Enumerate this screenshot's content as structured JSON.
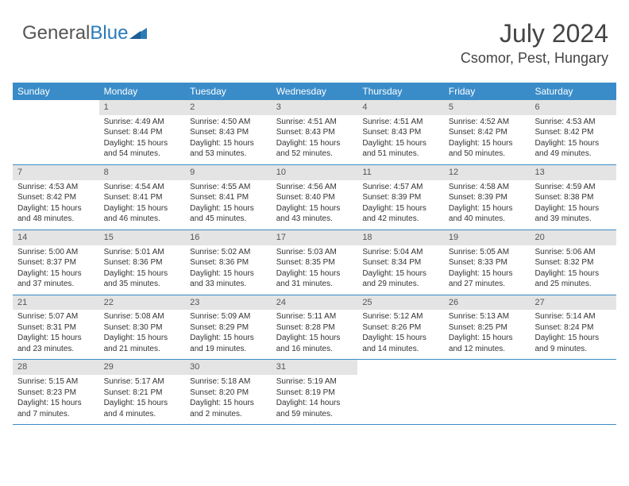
{
  "logo": {
    "text_gray": "General",
    "text_blue": "Blue"
  },
  "title": "July 2024",
  "location": "Csomor, Pest, Hungary",
  "colors": {
    "header_bg": "#3a8cc9",
    "header_text": "#ffffff",
    "daynum_bg": "#e4e4e4",
    "text": "#333333",
    "rule": "#3a8cc9"
  },
  "day_headers": [
    "Sunday",
    "Monday",
    "Tuesday",
    "Wednesday",
    "Thursday",
    "Friday",
    "Saturday"
  ],
  "weeks": [
    [
      null,
      {
        "n": "1",
        "sr": "4:49 AM",
        "ss": "8:44 PM",
        "dl": "15 hours and 54 minutes."
      },
      {
        "n": "2",
        "sr": "4:50 AM",
        "ss": "8:43 PM",
        "dl": "15 hours and 53 minutes."
      },
      {
        "n": "3",
        "sr": "4:51 AM",
        "ss": "8:43 PM",
        "dl": "15 hours and 52 minutes."
      },
      {
        "n": "4",
        "sr": "4:51 AM",
        "ss": "8:43 PM",
        "dl": "15 hours and 51 minutes."
      },
      {
        "n": "5",
        "sr": "4:52 AM",
        "ss": "8:42 PM",
        "dl": "15 hours and 50 minutes."
      },
      {
        "n": "6",
        "sr": "4:53 AM",
        "ss": "8:42 PM",
        "dl": "15 hours and 49 minutes."
      }
    ],
    [
      {
        "n": "7",
        "sr": "4:53 AM",
        "ss": "8:42 PM",
        "dl": "15 hours and 48 minutes."
      },
      {
        "n": "8",
        "sr": "4:54 AM",
        "ss": "8:41 PM",
        "dl": "15 hours and 46 minutes."
      },
      {
        "n": "9",
        "sr": "4:55 AM",
        "ss": "8:41 PM",
        "dl": "15 hours and 45 minutes."
      },
      {
        "n": "10",
        "sr": "4:56 AM",
        "ss": "8:40 PM",
        "dl": "15 hours and 43 minutes."
      },
      {
        "n": "11",
        "sr": "4:57 AM",
        "ss": "8:39 PM",
        "dl": "15 hours and 42 minutes."
      },
      {
        "n": "12",
        "sr": "4:58 AM",
        "ss": "8:39 PM",
        "dl": "15 hours and 40 minutes."
      },
      {
        "n": "13",
        "sr": "4:59 AM",
        "ss": "8:38 PM",
        "dl": "15 hours and 39 minutes."
      }
    ],
    [
      {
        "n": "14",
        "sr": "5:00 AM",
        "ss": "8:37 PM",
        "dl": "15 hours and 37 minutes."
      },
      {
        "n": "15",
        "sr": "5:01 AM",
        "ss": "8:36 PM",
        "dl": "15 hours and 35 minutes."
      },
      {
        "n": "16",
        "sr": "5:02 AM",
        "ss": "8:36 PM",
        "dl": "15 hours and 33 minutes."
      },
      {
        "n": "17",
        "sr": "5:03 AM",
        "ss": "8:35 PM",
        "dl": "15 hours and 31 minutes."
      },
      {
        "n": "18",
        "sr": "5:04 AM",
        "ss": "8:34 PM",
        "dl": "15 hours and 29 minutes."
      },
      {
        "n": "19",
        "sr": "5:05 AM",
        "ss": "8:33 PM",
        "dl": "15 hours and 27 minutes."
      },
      {
        "n": "20",
        "sr": "5:06 AM",
        "ss": "8:32 PM",
        "dl": "15 hours and 25 minutes."
      }
    ],
    [
      {
        "n": "21",
        "sr": "5:07 AM",
        "ss": "8:31 PM",
        "dl": "15 hours and 23 minutes."
      },
      {
        "n": "22",
        "sr": "5:08 AM",
        "ss": "8:30 PM",
        "dl": "15 hours and 21 minutes."
      },
      {
        "n": "23",
        "sr": "5:09 AM",
        "ss": "8:29 PM",
        "dl": "15 hours and 19 minutes."
      },
      {
        "n": "24",
        "sr": "5:11 AM",
        "ss": "8:28 PM",
        "dl": "15 hours and 16 minutes."
      },
      {
        "n": "25",
        "sr": "5:12 AM",
        "ss": "8:26 PM",
        "dl": "15 hours and 14 minutes."
      },
      {
        "n": "26",
        "sr": "5:13 AM",
        "ss": "8:25 PM",
        "dl": "15 hours and 12 minutes."
      },
      {
        "n": "27",
        "sr": "5:14 AM",
        "ss": "8:24 PM",
        "dl": "15 hours and 9 minutes."
      }
    ],
    [
      {
        "n": "28",
        "sr": "5:15 AM",
        "ss": "8:23 PM",
        "dl": "15 hours and 7 minutes."
      },
      {
        "n": "29",
        "sr": "5:17 AM",
        "ss": "8:21 PM",
        "dl": "15 hours and 4 minutes."
      },
      {
        "n": "30",
        "sr": "5:18 AM",
        "ss": "8:20 PM",
        "dl": "15 hours and 2 minutes."
      },
      {
        "n": "31",
        "sr": "5:19 AM",
        "ss": "8:19 PM",
        "dl": "14 hours and 59 minutes."
      },
      null,
      null,
      null
    ]
  ],
  "labels": {
    "sunrise": "Sunrise: ",
    "sunset": "Sunset: ",
    "daylight": "Daylight: "
  }
}
